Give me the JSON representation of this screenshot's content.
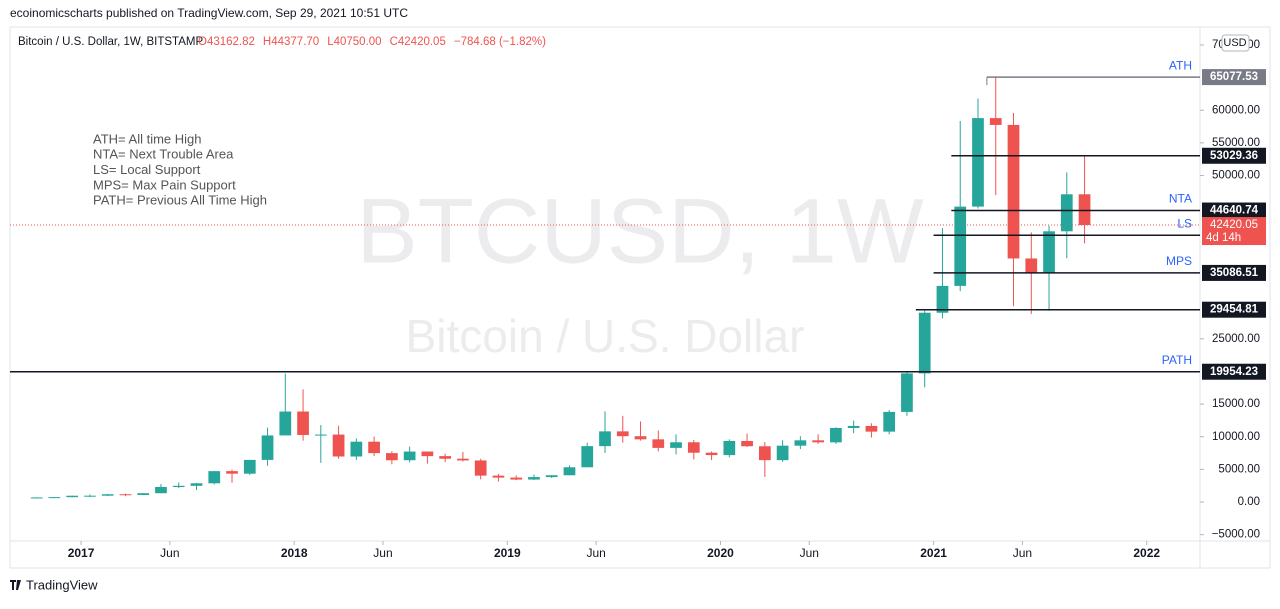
{
  "header": "ecoinomicscharts published on TradingView.com, Sep 29, 2021 10:51 UTC",
  "footer": "TradingView",
  "chart_data": {
    "type": "candlestick",
    "symbol": "Bitcoin / U.S. Dollar, 1W, BITSTAMP",
    "ohlc": [
      "O43162.82",
      "H44377.70",
      "L40750.00",
      "C42420.05",
      "−784.68 (−1.82%)"
    ],
    "watermark": [
      "BTCUSD, 1W",
      "Bitcoin / U.S. Dollar"
    ],
    "notes": [
      "ATH= All time High",
      "NTA= Next Trouble Area",
      "LS= Local Support",
      "MPS= Max Pain Support",
      "PATH= Previous All Time High"
    ],
    "currency": "USD",
    "up_color": "#26a69a",
    "down_color": "#ef5350",
    "x": [
      "2016-10",
      "2016-11",
      "2016-12",
      "2017-01",
      "2017-02",
      "2017-03",
      "2017-04",
      "2017-05",
      "2017-06",
      "2017-07",
      "2017-08",
      "2017-09",
      "2017-10",
      "2017-11",
      "2017-12",
      "2018-01",
      "2018-02",
      "2018-03",
      "2018-04",
      "2018-05",
      "2018-06",
      "2018-07",
      "2018-08",
      "2018-09",
      "2018-10",
      "2018-11",
      "2018-12",
      "2019-01",
      "2019-02",
      "2019-03",
      "2019-04",
      "2019-05",
      "2019-06",
      "2019-07",
      "2019-08",
      "2019-09",
      "2019-10",
      "2019-11",
      "2019-12",
      "2020-01",
      "2020-02",
      "2020-03",
      "2020-04",
      "2020-05",
      "2020-06",
      "2020-07",
      "2020-08",
      "2020-09",
      "2020-10",
      "2020-11",
      "2020-12",
      "2021-01",
      "2021-02",
      "2021-03",
      "2021-04",
      "2021-05",
      "2021-06",
      "2021-07",
      "2021-08",
      "2021-09"
    ],
    "open": [
      609,
      700,
      745,
      965,
      970,
      1190,
      1080,
      1350,
      2300,
      2480,
      2870,
      4730,
      4340,
      6450,
      10200,
      13860,
      10270,
      10330,
      6970,
      9240,
      7490,
      6400,
      7730,
      7030,
      6630,
      6370,
      4040,
      3740,
      3440,
      3820,
      4100,
      5320,
      8560,
      10820,
      10080,
      9600,
      8290,
      9150,
      7550,
      7190,
      9350,
      8540,
      6410,
      8630,
      9450,
      9140,
      11340,
      11650,
      10780,
      13800,
      19700,
      28990,
      33100,
      45240,
      58800,
      57750,
      37300,
      35040,
      41460,
      47130
    ],
    "high": [
      740,
      760,
      980,
      1150,
      1210,
      1290,
      1350,
      2760,
      2990,
      2930,
      4750,
      4980,
      6450,
      11400,
      19670,
      17250,
      11780,
      11680,
      9750,
      10020,
      7780,
      8500,
      7750,
      7410,
      7680,
      6620,
      4310,
      4070,
      4200,
      4130,
      5620,
      9080,
      13880,
      13200,
      12330,
      10950,
      10370,
      9510,
      7750,
      9590,
      10500,
      9190,
      9460,
      10070,
      10380,
      11450,
      12470,
      12060,
      14100,
      19860,
      29300,
      41950,
      58350,
      61790,
      65077.53,
      59600,
      41300,
      42320,
      50500,
      52920
    ],
    "low": [
      605,
      690,
      740,
      750,
      920,
      890,
      1060,
      1350,
      2130,
      1840,
      2700,
      2950,
      4160,
      5550,
      10900,
      9400,
      6000,
      6620,
      6430,
      7060,
      5780,
      6080,
      5880,
      6100,
      6200,
      3480,
      3130,
      3350,
      3380,
      3680,
      4090,
      5330,
      7510,
      9070,
      9400,
      7750,
      7300,
      6520,
      6420,
      6850,
      8450,
      3850,
      6150,
      8110,
      8900,
      8900,
      10540,
      9880,
      10370,
      13200,
      17570,
      28130,
      32300,
      44960,
      47000,
      30000,
      28800,
      29280,
      37330,
      39600
    ],
    "close": [
      700,
      745,
      965,
      970,
      1190,
      1080,
      1350,
      2300,
      2480,
      2870,
      4730,
      4340,
      6450,
      10200,
      13860,
      10270,
      10330,
      6970,
      9240,
      7490,
      6400,
      7730,
      7030,
      6630,
      6370,
      4040,
      3740,
      3440,
      3820,
      4100,
      5320,
      8560,
      10820,
      10080,
      9600,
      8290,
      9150,
      7550,
      7190,
      9350,
      8540,
      6410,
      8630,
      9450,
      9140,
      11340,
      11650,
      10780,
      13800,
      19700,
      28990,
      33100,
      45240,
      58800,
      57750,
      37300,
      35040,
      41460,
      47130,
      42420
    ],
    "xlim": [
      "2016-09",
      "2022-04"
    ],
    "ylim": [
      -5970,
      72750
    ],
    "yticks": [
      {
        "value": 70000,
        "label": "70000.00"
      },
      {
        "value": 60000,
        "label": "60000.00"
      },
      {
        "value": 55000,
        "label": "55000.00"
      },
      {
        "value": 50000,
        "label": "50000.00"
      },
      {
        "value": 25000,
        "label": "25000.00"
      },
      {
        "value": 15000,
        "label": "15000.00"
      },
      {
        "value": 10000,
        "label": "10000.00"
      },
      {
        "value": 5000,
        "label": "5000.00"
      },
      {
        "value": 0,
        "label": "0.00"
      },
      {
        "value": -5000,
        "label": "−5000.00"
      }
    ],
    "xticks": [
      {
        "value": "2017-01",
        "label": "2017"
      },
      {
        "value": "2017-06",
        "label": "Jun"
      },
      {
        "value": "2018-01",
        "label": "2018"
      },
      {
        "value": "2018-06",
        "label": "Jun"
      },
      {
        "value": "2019-01",
        "label": "2019"
      },
      {
        "value": "2019-06",
        "label": "Jun"
      },
      {
        "value": "2020-01",
        "label": "2020"
      },
      {
        "value": "2020-06",
        "label": "Jun"
      },
      {
        "value": "2021-01",
        "label": "2021"
      },
      {
        "value": "2021-06",
        "label": "Jun"
      },
      {
        "value": "2022-01",
        "label": "2022"
      }
    ],
    "levels": [
      {
        "name": "ATH",
        "value": 65077.53,
        "start": "2021-04",
        "color": "#787b86"
      },
      {
        "value": 53029.36,
        "start": "2021-02",
        "color": "#131722"
      },
      {
        "name": "NTA",
        "value": 44640.74,
        "start": "2021-02",
        "color": "#131722"
      },
      {
        "name": "LS",
        "value": 40849.18,
        "start": "2021-01",
        "color": "#131722"
      },
      {
        "name": "MPS",
        "value": 35086.51,
        "start": "2021-01",
        "color": "#131722"
      },
      {
        "value": 29454.81,
        "start": "2020-12",
        "color": "#131722"
      },
      {
        "name": "PATH",
        "value": 19954.23,
        "start": "2016-09",
        "color": "#131722"
      }
    ],
    "last_price": 42420.05,
    "countdown": "4d 14h",
    "last_color": "#ef5350"
  }
}
